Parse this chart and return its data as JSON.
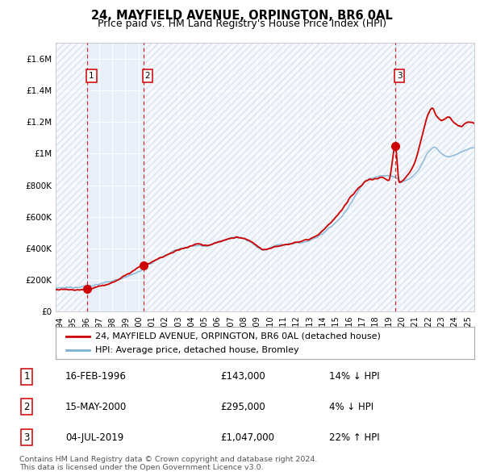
{
  "title": "24, MAYFIELD AVENUE, ORPINGTON, BR6 0AL",
  "subtitle": "Price paid vs. HM Land Registry's House Price Index (HPI)",
  "ylim": [
    0,
    1700000
  ],
  "yticks": [
    0,
    200000,
    400000,
    600000,
    800000,
    1000000,
    1200000,
    1400000,
    1600000
  ],
  "ytick_labels": [
    "£0",
    "£200K",
    "£400K",
    "£600K",
    "£800K",
    "£1M",
    "£1.2M",
    "£1.4M",
    "£1.6M"
  ],
  "xmin": 1993.7,
  "xmax": 2025.5,
  "sale_dates": [
    1996.12,
    2000.37,
    2019.5
  ],
  "sale_prices": [
    143000,
    295000,
    1047000
  ],
  "hpi_color": "#7bafd4",
  "price_color": "#cc0000",
  "dashed_color": "#cc0000",
  "plot_bg": "#e8eff8",
  "hatch_color": "#c8d8e8",
  "label_sale": "24, MAYFIELD AVENUE, ORPINGTON, BR6 0AL (detached house)",
  "label_hpi": "HPI: Average price, detached house, Bromley",
  "table_rows": [
    {
      "num": "1",
      "date": "16-FEB-1996",
      "price": "£143,000",
      "hpi": "14% ↓ HPI"
    },
    {
      "num": "2",
      "date": "15-MAY-2000",
      "price": "£295,000",
      "hpi": "4% ↓ HPI"
    },
    {
      "num": "3",
      "date": "04-JUL-2019",
      "price": "£1,047,000",
      "hpi": "22% ↑ HPI"
    }
  ],
  "footnote": "Contains HM Land Registry data © Crown copyright and database right 2024.\nThis data is licensed under the Open Government Licence v3.0.",
  "title_fontsize": 10.5,
  "subtitle_fontsize": 9,
  "tick_fontsize": 7.5,
  "legend_fontsize": 8,
  "table_fontsize": 8.5
}
